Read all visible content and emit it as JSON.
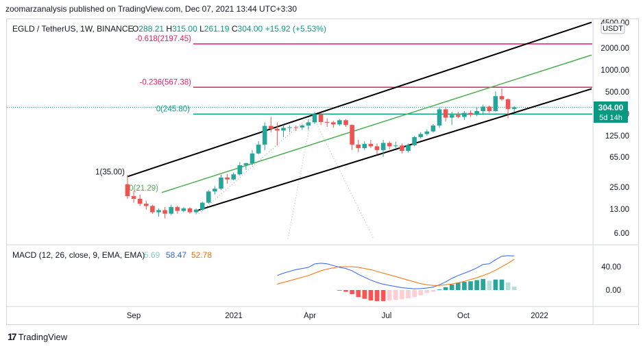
{
  "header": {
    "text": "zoomarzanalysis published on TradingView.com, Dec 07, 2021 13:44 UTC+3:30"
  },
  "footer": {
    "logo": "17",
    "name": "TradingView"
  },
  "colors": {
    "up": "#26a69a",
    "down": "#ef5350",
    "fib_red": "#e91e63",
    "fib_teal": "#089981",
    "channel": "#000000",
    "mid_channel": "#4caf50",
    "macd": "#2962ff",
    "signal": "#ff6d00",
    "hist_up_strong": "#26a69a",
    "hist_up_weak": "#b2dfdb",
    "hist_down_strong": "#ff5252",
    "hist_down_weak": "#ffcdd2"
  },
  "chart_data": [
    {
      "type": "candlestick",
      "symbol_line": {
        "title": "EGLD / TetherUS, 1W, BINANCE",
        "o_label": "O",
        "o": "288.21",
        "h_label": "H",
        "h": "315.00",
        "l_label": "L",
        "l": "261.19",
        "c_label": "C",
        "c": "304.00",
        "change": "+15.92 (+5.53%)"
      },
      "currency": "USDT",
      "log_scale": true,
      "y_ticks": [
        "4500.00",
        "2000.00",
        "1000.00",
        "500.00",
        "250.00",
        "125.00",
        "65.00",
        "25.00",
        "13.00",
        "6.00"
      ],
      "x_ticks": [
        "Sep",
        "2021",
        "Apr",
        "Jul",
        "Oct",
        "2022"
      ],
      "last_price": "304.00",
      "countdown": "5d 14h",
      "fib_labels": [
        {
          "text": "-0.618(2197.45)",
          "value": 2197.45,
          "color": "#e91e63"
        },
        {
          "text": "-0.236(567.38)",
          "value": 567.38,
          "color": "#e91e63"
        },
        {
          "text": "0(245.80)",
          "value": 245.8,
          "color": "#089981"
        },
        {
          "text": "1(35.00)",
          "value": 35.0,
          "color": "#131722"
        },
        {
          "text": "0(21.29)",
          "value": 21.29,
          "color": "#4caf50"
        }
      ],
      "candles": [
        {
          "o": 27.5,
          "h": 37,
          "l": 17.5,
          "c": 19
        },
        {
          "o": 19,
          "h": 22.5,
          "l": 15.5,
          "c": 17.5
        },
        {
          "o": 17.5,
          "h": 20,
          "l": 14,
          "c": 15
        },
        {
          "o": 15,
          "h": 16.5,
          "l": 12.5,
          "c": 14
        },
        {
          "o": 14,
          "h": 14.5,
          "l": 11,
          "c": 11.5
        },
        {
          "o": 11.5,
          "h": 13,
          "l": 10,
          "c": 12.3
        },
        {
          "o": 12.3,
          "h": 13.5,
          "l": 9.5,
          "c": 11
        },
        {
          "o": 11,
          "h": 14.5,
          "l": 10.5,
          "c": 13.5
        },
        {
          "o": 13.5,
          "h": 14.2,
          "l": 11,
          "c": 12
        },
        {
          "o": 12,
          "h": 13.5,
          "l": 11.5,
          "c": 13
        },
        {
          "o": 13,
          "h": 13.5,
          "l": 11,
          "c": 11.5
        },
        {
          "o": 11.5,
          "h": 13,
          "l": 10.8,
          "c": 12.5
        },
        {
          "o": 12.5,
          "h": 16,
          "l": 12,
          "c": 15.5
        },
        {
          "o": 15.5,
          "h": 23,
          "l": 15,
          "c": 22
        },
        {
          "o": 22,
          "h": 26,
          "l": 20,
          "c": 24
        },
        {
          "o": 24,
          "h": 37,
          "l": 23,
          "c": 34
        },
        {
          "o": 34,
          "h": 38,
          "l": 28,
          "c": 32
        },
        {
          "o": 32,
          "h": 40,
          "l": 31,
          "c": 37.5
        },
        {
          "o": 37.5,
          "h": 55,
          "l": 36,
          "c": 50
        },
        {
          "o": 50,
          "h": 54,
          "l": 43,
          "c": 53
        },
        {
          "o": 53,
          "h": 80,
          "l": 50,
          "c": 72
        },
        {
          "o": 72,
          "h": 105,
          "l": 70,
          "c": 95
        },
        {
          "o": 95,
          "h": 190,
          "l": 80,
          "c": 170
        },
        {
          "o": 170,
          "h": 225,
          "l": 140,
          "c": 155
        },
        {
          "o": 155,
          "h": 190,
          "l": 92,
          "c": 147
        },
        {
          "o": 147,
          "h": 175,
          "l": 120,
          "c": 160
        },
        {
          "o": 160,
          "h": 172,
          "l": 140,
          "c": 163
        },
        {
          "o": 163,
          "h": 172,
          "l": 145,
          "c": 162
        },
        {
          "o": 162,
          "h": 178,
          "l": 150,
          "c": 172
        },
        {
          "o": 172,
          "h": 210,
          "l": 150,
          "c": 190
        },
        {
          "o": 190,
          "h": 262,
          "l": 180,
          "c": 245
        },
        {
          "o": 245,
          "h": 255,
          "l": 175,
          "c": 192
        },
        {
          "o": 192,
          "h": 215,
          "l": 165,
          "c": 190
        },
        {
          "o": 190,
          "h": 200,
          "l": 160,
          "c": 178
        },
        {
          "o": 178,
          "h": 210,
          "l": 170,
          "c": 203
        },
        {
          "o": 203,
          "h": 210,
          "l": 165,
          "c": 175
        },
        {
          "o": 175,
          "h": 178,
          "l": 80,
          "c": 95
        },
        {
          "o": 95,
          "h": 110,
          "l": 75,
          "c": 85
        },
        {
          "o": 85,
          "h": 105,
          "l": 80,
          "c": 97
        },
        {
          "o": 97,
          "h": 110,
          "l": 85,
          "c": 90
        },
        {
          "o": 90,
          "h": 98,
          "l": 70,
          "c": 80
        },
        {
          "o": 80,
          "h": 110,
          "l": 65,
          "c": 100
        },
        {
          "o": 100,
          "h": 106,
          "l": 82,
          "c": 90
        },
        {
          "o": 90,
          "h": 104,
          "l": 85,
          "c": 92
        },
        {
          "o": 92,
          "h": 98,
          "l": 72,
          "c": 78
        },
        {
          "o": 78,
          "h": 98,
          "l": 74,
          "c": 93
        },
        {
          "o": 93,
          "h": 125,
          "l": 90,
          "c": 120
        },
        {
          "o": 120,
          "h": 140,
          "l": 115,
          "c": 132
        },
        {
          "o": 132,
          "h": 152,
          "l": 125,
          "c": 143
        },
        {
          "o": 143,
          "h": 180,
          "l": 138,
          "c": 172
        },
        {
          "o": 172,
          "h": 300,
          "l": 160,
          "c": 285
        },
        {
          "o": 285,
          "h": 300,
          "l": 195,
          "c": 220
        },
        {
          "o": 220,
          "h": 265,
          "l": 175,
          "c": 240
        },
        {
          "o": 240,
          "h": 265,
          "l": 215,
          "c": 225
        },
        {
          "o": 225,
          "h": 270,
          "l": 205,
          "c": 255
        },
        {
          "o": 255,
          "h": 275,
          "l": 225,
          "c": 240
        },
        {
          "o": 240,
          "h": 300,
          "l": 230,
          "c": 270
        },
        {
          "o": 270,
          "h": 330,
          "l": 240,
          "c": 310
        },
        {
          "o": 310,
          "h": 320,
          "l": 255,
          "c": 270
        },
        {
          "o": 270,
          "h": 500,
          "l": 265,
          "c": 430
        },
        {
          "o": 430,
          "h": 545,
          "l": 370,
          "c": 390
        },
        {
          "o": 390,
          "h": 400,
          "l": 215,
          "c": 288
        },
        {
          "o": 288.21,
          "h": 315,
          "l": 261.19,
          "c": 304
        }
      ]
    },
    {
      "type": "macd",
      "label": "MACD (12, 26, close, 9, EMA, EMA)",
      "hist_value": "5.69",
      "macd_value": "58.47",
      "signal_value": "52.78",
      "y_ticks": [
        "40.00",
        "0.00"
      ],
      "macd": [
        0,
        -0.1,
        -0.3,
        -0.4,
        -0.6,
        -0.6,
        -0.6,
        -0.5,
        -0.5,
        -0.4,
        -0.4,
        -0.3,
        0,
        0.3,
        0.6,
        1.5,
        2.2,
        2.8,
        3.8,
        5,
        6.5,
        9,
        14,
        20,
        25,
        29,
        32,
        35,
        37,
        39,
        45,
        46,
        45,
        42,
        39,
        37,
        33,
        27,
        22,
        17,
        13,
        10,
        8,
        6,
        4,
        3,
        2,
        2.5,
        3.5,
        5,
        9,
        14,
        20,
        25,
        29,
        33,
        38,
        44,
        45,
        52,
        58,
        59,
        58.47
      ],
      "signal": [
        0,
        -0.05,
        -0.1,
        -0.2,
        -0.3,
        -0.35,
        -0.4,
        -0.45,
        -0.45,
        -0.45,
        -0.45,
        -0.4,
        -0.35,
        -0.2,
        0,
        0.3,
        0.6,
        1,
        1.5,
        2.2,
        3,
        4,
        5.5,
        7.5,
        10,
        13,
        16,
        19,
        22,
        25,
        29,
        33,
        36,
        38,
        40,
        40,
        40,
        39,
        37,
        35,
        32,
        29,
        26,
        23,
        20,
        17,
        14,
        11,
        9,
        8,
        8,
        9,
        10.5,
        12.5,
        15,
        18,
        21,
        25,
        29,
        34,
        40,
        46,
        52.78
      ],
      "hist": [
        0,
        0,
        0,
        0,
        0,
        0,
        0,
        0,
        0,
        0,
        0,
        0,
        0,
        0,
        0,
        0,
        0,
        0,
        0,
        0,
        0,
        0,
        0,
        0,
        0,
        0,
        0,
        0,
        0,
        0,
        0,
        0,
        0,
        0,
        -1,
        -3,
        -7,
        -12,
        -15,
        -18,
        -19,
        -19,
        -18,
        -17,
        -16,
        -14,
        -12,
        -9,
        -5,
        -3,
        1,
        5,
        9.5,
        12.5,
        14,
        15,
        17,
        19,
        16,
        18,
        18,
        13,
        5.69
      ]
    }
  ]
}
